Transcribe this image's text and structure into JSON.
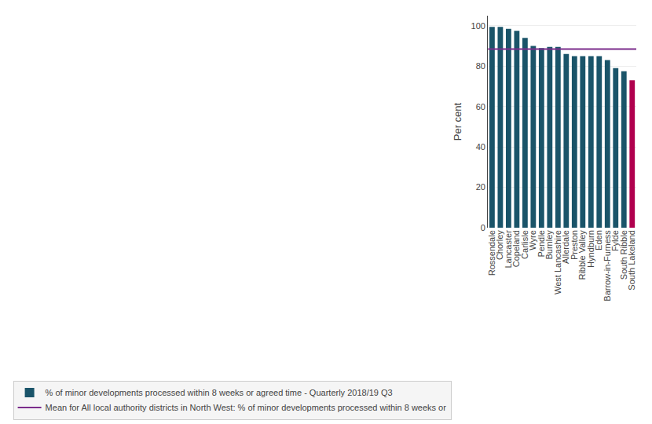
{
  "chart_data": {
    "type": "bar",
    "categories": [
      "Rossendale",
      "Chorley",
      "Lancaster",
      "Copeland",
      "Carlisle",
      "Wyre",
      "Pendle",
      "Burnley",
      "West Lancashire",
      "Allerdale",
      "Preston",
      "Ribble Valley",
      "Hyndburn",
      "Eden",
      "Barrow-in-Furness",
      "Fylde",
      "South Ribble",
      "South Lakeland"
    ],
    "series": [
      {
        "name": "% of minor developments processed within 8 weeks or agreed time - Quarterly 2018/19 Q3",
        "type": "bar",
        "values": [
          99.5,
          99.5,
          98.5,
          97.5,
          94.0,
          90.0,
          89.0,
          89.5,
          89.5,
          86.0,
          85.0,
          85.0,
          85.0,
          85.0,
          83.0,
          79.0,
          77.5,
          73.0
        ],
        "colors": [
          "#1a5469",
          "#1a5469",
          "#1a5469",
          "#1a5469",
          "#1a5469",
          "#1a5469",
          "#1a5469",
          "#1a5469",
          "#1a5469",
          "#1a5469",
          "#1a5469",
          "#1a5469",
          "#1a5469",
          "#1a5469",
          "#1a5469",
          "#1a5469",
          "#1a5469",
          "#b0004e"
        ]
      }
    ],
    "mean_line": {
      "name": "Mean for All local authority districts in North West: % of minor developments processed within 8 weeks or",
      "value": 88.5,
      "color": "#7b2d8b"
    },
    "ylabel": "Per cent",
    "ylim": [
      0,
      105
    ],
    "yticks": [
      0,
      20,
      40,
      60,
      80,
      100
    ],
    "grid": true,
    "legend": "bottom"
  }
}
